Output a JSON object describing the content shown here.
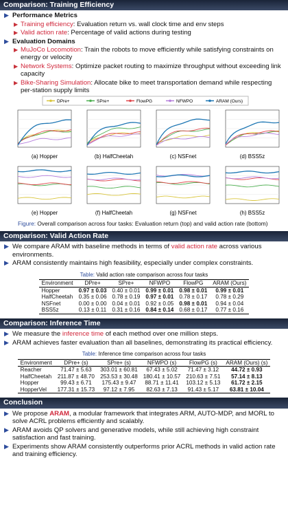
{
  "sections": [
    {
      "title": "Comparison: Training Efficiency",
      "bullets": [
        {
          "segments": [
            {
              "text": "Performance Metrics",
              "style": "bold"
            }
          ],
          "sub": [
            {
              "segments": [
                {
                  "text": "Training efficiency",
                  "style": "red"
                },
                {
                  "text": ": Evaluation return vs. wall clock time and env steps"
                }
              ]
            },
            {
              "segments": [
                {
                  "text": "Valid action rate",
                  "style": "red"
                },
                {
                  "text": ": Percentage of valid actions during testing"
                }
              ]
            }
          ]
        },
        {
          "segments": [
            {
              "text": "Evaluation Domains",
              "style": "bold"
            }
          ],
          "sub": [
            {
              "segments": [
                {
                  "text": "MuJoCo Locomotion",
                  "style": "red"
                },
                {
                  "text": ": Train the robots to move efficiently while satisfying constraints on energy or velocity"
                }
              ]
            },
            {
              "segments": [
                {
                  "text": "Network Systems",
                  "style": "red"
                },
                {
                  "text": ": Optimize packet routing to maximize throughput without exceeding link capacity"
                }
              ]
            },
            {
              "segments": [
                {
                  "text": "Bike-Sharing Simulation",
                  "style": "red"
                },
                {
                  "text": ": Allocate bike to meet transportation demand while respecting per-station supply limits"
                }
              ]
            }
          ]
        }
      ],
      "figure": {
        "legend": [
          {
            "name": "DPre+",
            "color": "#d9c53c"
          },
          {
            "name": "SPre+",
            "color": "#4caf50"
          },
          {
            "name": "FlowPG",
            "color": "#e0474c"
          },
          {
            "name": "NFWPO",
            "color": "#b57edc"
          },
          {
            "name": "ARAM (Ours)",
            "color": "#1f77b4"
          }
        ],
        "panels": [
          "(a) Hopper",
          "(b) HalfCheetah",
          "(c) NSFnet",
          "(d) BSS5z",
          "(e) Hopper",
          "(f) HalfCheetah",
          "(g) NSFnet",
          "(h) BSS5z"
        ],
        "caption_label": "Figure:",
        "caption": "Overall comparison across four tasks: Evaluation return (top) and valid action rate (bottom)"
      }
    },
    {
      "title": "Comparison: Valid Action Rate",
      "bullets": [
        {
          "segments": [
            {
              "text": "We compare ARAM with baseline methods in terms of "
            },
            {
              "text": "valid action rate",
              "style": "red"
            },
            {
              "text": " across various environments."
            }
          ]
        },
        {
          "segments": [
            {
              "text": "ARAM consistently maintains high feasibility, especially under complex constraints."
            }
          ]
        }
      ],
      "table": {
        "caption_label": "Table:",
        "caption": "Valid action rate comparison across four tasks",
        "header": [
          "Environment",
          "DPre+",
          "SPre+",
          "NFWPO",
          "FlowPG",
          "ARAM (Ours)"
        ],
        "rows": [
          [
            "Hopper",
            "0.97 ± 0.03",
            "0.40 ± 0.01",
            "0.99 ± 0.01",
            "0.98 ± 0.01",
            "0.99 ± 0.01"
          ],
          [
            "HalfCheetah",
            "0.35 ± 0.06",
            "0.78 ± 0.19",
            "0.97 ± 0.01",
            "0.78 ± 0.17",
            "0.78 ± 0.29"
          ],
          [
            "NSFnet",
            "0.00 ± 0.00",
            "0.04 ± 0.01",
            "0.92 ± 0.05",
            "0.98 ± 0.01",
            "0.94 ± 0.04"
          ],
          [
            "BSS5z",
            "0.13 ± 0.11",
            "0.31 ± 0.16",
            "0.84 ± 0.14",
            "0.68 ± 0.17",
            "0.77 ± 0.16"
          ]
        ],
        "bold": [
          [
            1,
            3,
            4,
            5
          ],
          [
            3
          ],
          [
            4
          ],
          [
            3
          ]
        ]
      }
    },
    {
      "title": "Comparison: Inference Time",
      "bullets": [
        {
          "segments": [
            {
              "text": "We measure the "
            },
            {
              "text": "inference time",
              "style": "red"
            },
            {
              "text": " of each method over one million steps."
            }
          ]
        },
        {
          "segments": [
            {
              "text": "ARAM achieves faster evaluation than all baselines, demonstrating its practical efficiency."
            }
          ]
        }
      ],
      "table": {
        "caption_label": "Table:",
        "caption": "Inference time comparison across four tasks",
        "header": [
          "Environment",
          "DPre+ (s)",
          "SPre+ (s)",
          "NFWPO (s)",
          "FlowPG (s)",
          "ARAM (Ours) (s)"
        ],
        "rows": [
          [
            "Reacher",
            "71.47 ± 5.63",
            "303.01 ± 60.81",
            "67.43 ± 5.02",
            "71.47 ± 3.12",
            "44.72 ± 0.93"
          ],
          [
            "HalfCheetah",
            "211.87 ± 48.70",
            "253.53 ± 30.48",
            "180.41 ± 10.57",
            "210.63 ± 7.51",
            "57.14 ± 8.13"
          ],
          [
            "Hopper",
            "99.43 ± 6.71",
            "175.43 ± 9.47",
            "88.71 ± 11.41",
            "103.12 ± 5.13",
            "61.72 ± 2.15"
          ],
          [
            "HopperVel",
            "177.31 ± 15.73",
            "97.12 ± 7.95",
            "82.63 ± 7.13",
            "91.43 ± 5.17",
            "63.81 ± 10.04"
          ]
        ],
        "bold": [
          [
            5
          ],
          [
            5
          ],
          [
            5
          ],
          [
            5
          ]
        ]
      }
    },
    {
      "title": "Conclusion",
      "bullets": [
        {
          "segments": [
            {
              "text": "We propose "
            },
            {
              "text": "ARAM",
              "style": "red-bold"
            },
            {
              "text": ", a modular framework that integrates ARM, AUTO-MDP, and MORL to solve ACRL problems efficiently and scalably."
            }
          ]
        },
        {
          "segments": [
            {
              "text": "ARAM avoids QP solvers and generative models, while still achieving high constraint satisfaction and fast training."
            }
          ]
        },
        {
          "segments": [
            {
              "text": "Experiments show ARAM consistently outperforms prior ACRL methods in valid action rate and training efficiency."
            }
          ]
        }
      ]
    }
  ]
}
